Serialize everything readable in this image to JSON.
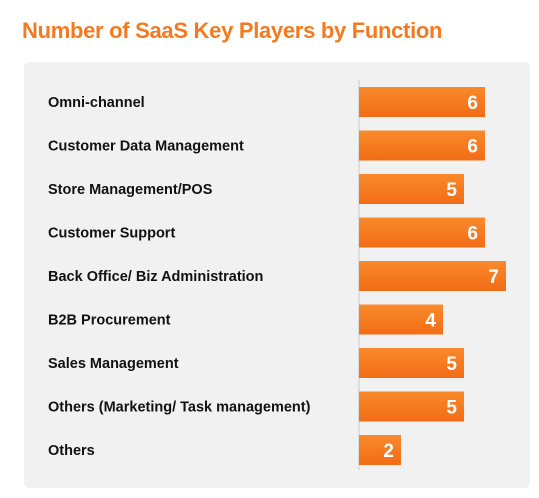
{
  "colors": {
    "accent": "#f57a1f",
    "bar_top": "#f98a2c",
    "bar_bottom": "#f26c16",
    "panel": "#f1f1f1",
    "axis": "#cccccc",
    "text": "#111111"
  },
  "chart_data": {
    "type": "bar",
    "orientation": "horizontal",
    "title": "Number of SaaS Key Players by Function",
    "categories": [
      "Omni-channel",
      "Customer Data Management",
      "Store Management/POS",
      "Customer Support",
      "Back Office/ Biz Administration",
      "B2B Procurement",
      "Sales Management",
      "Others (Marketing/ Task management)",
      "Others"
    ],
    "values": [
      6,
      6,
      5,
      6,
      7,
      4,
      5,
      5,
      2
    ],
    "value_labels": [
      "6",
      "6",
      "5",
      "6",
      "7",
      "4",
      "5",
      "5",
      "2"
    ],
    "xlim": [
      0,
      7
    ],
    "grid": false,
    "legend": "none",
    "data_labels": "inside-end"
  }
}
